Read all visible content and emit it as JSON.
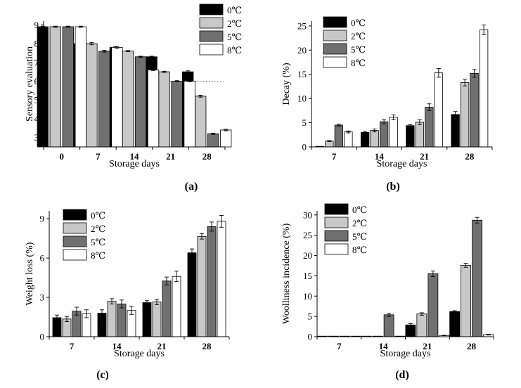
{
  "legend_labels": [
    "0℃",
    "2℃",
    "5℃",
    "8℃"
  ],
  "series_colors": [
    "#000000",
    "#c8c8c8",
    "#707070",
    "#ffffff"
  ],
  "chart_data": [
    {
      "type": "bar",
      "panel_label": "(a)",
      "xlabel": "Storage days",
      "ylabel": "Sensory evaluation",
      "categories": [
        "0",
        "7",
        "14",
        "21",
        "28"
      ],
      "ylim": [
        2.5,
        9.2
      ],
      "yticks": [
        3,
        4,
        5,
        6,
        7,
        8,
        9
      ],
      "reference_line": 6,
      "legend_position": "top-right",
      "series": [
        {
          "name": "0℃",
          "values": [
            8.9,
            8.0,
            7.8,
            7.3,
            6.5
          ],
          "errors": [
            0.03,
            0.03,
            0.03,
            0.03,
            0.05
          ]
        },
        {
          "name": "2℃",
          "values": [
            8.9,
            8.0,
            7.6,
            6.5,
            5.2
          ],
          "errors": [
            0.03,
            0.06,
            0.03,
            0.03,
            0.05
          ]
        },
        {
          "name": "5℃",
          "values": [
            8.9,
            7.6,
            7.3,
            6.0,
            3.2
          ],
          "errors": [
            0.03,
            0.05,
            0.03,
            0.03,
            0.03
          ]
        },
        {
          "name": "8℃",
          "values": [
            8.9,
            7.8,
            6.6,
            6.0,
            3.4
          ],
          "errors": [
            0.03,
            0.05,
            0.03,
            0.03,
            0.04
          ]
        }
      ]
    },
    {
      "type": "bar",
      "panel_label": "(b)",
      "xlabel": "Storage days",
      "ylabel": "Decay (%)",
      "categories": [
        "7",
        "14",
        "21",
        "28"
      ],
      "ylim": [
        0,
        26
      ],
      "yticks": [
        0,
        5,
        10,
        15,
        20,
        25
      ],
      "legend_position": "top-left",
      "series": [
        {
          "name": "0℃",
          "values": [
            0,
            3.0,
            4.4,
            6.7
          ],
          "errors": [
            0,
            0.2,
            0.2,
            0.6
          ]
        },
        {
          "name": "2℃",
          "values": [
            1.2,
            3.4,
            5.1,
            13.3
          ],
          "errors": [
            0.1,
            0.3,
            0.5,
            0.7
          ]
        },
        {
          "name": "5℃",
          "values": [
            4.5,
            5.2,
            8.2,
            15.2
          ],
          "errors": [
            0.2,
            0.4,
            0.7,
            0.8
          ]
        },
        {
          "name": "8℃",
          "values": [
            3.1,
            6.1,
            15.3,
            24.2
          ],
          "errors": [
            0.2,
            0.5,
            0.9,
            1.0
          ]
        }
      ]
    },
    {
      "type": "bar",
      "panel_label": "(c)",
      "xlabel": "Storage days",
      "ylabel": "Weight loss (%)",
      "categories": [
        "7",
        "14",
        "21",
        "28"
      ],
      "ylim": [
        0,
        9.6
      ],
      "yticks": [
        0,
        3,
        6,
        9
      ],
      "legend_position": "top-left",
      "series": [
        {
          "name": "0℃",
          "values": [
            1.45,
            1.8,
            2.6,
            6.4
          ],
          "errors": [
            0.2,
            0.25,
            0.15,
            0.3
          ]
        },
        {
          "name": "2℃",
          "values": [
            1.35,
            2.7,
            2.65,
            7.65
          ],
          "errors": [
            0.2,
            0.2,
            0.2,
            0.2
          ]
        },
        {
          "name": "5℃",
          "values": [
            1.95,
            2.5,
            4.25,
            8.4
          ],
          "errors": [
            0.3,
            0.3,
            0.3,
            0.35
          ]
        },
        {
          "name": "8℃",
          "values": [
            1.75,
            2.0,
            4.6,
            8.8
          ],
          "errors": [
            0.3,
            0.3,
            0.4,
            0.45
          ]
        }
      ]
    },
    {
      "type": "bar",
      "panel_label": "(d)",
      "xlabel": "Storage days",
      "ylabel": "Woolliness incidence (%)",
      "categories": [
        "7",
        "14",
        "21",
        "28"
      ],
      "ylim": [
        0,
        31
      ],
      "yticks": [
        0,
        5,
        10,
        15,
        20,
        25,
        30
      ],
      "legend_position": "top-left",
      "series": [
        {
          "name": "0℃",
          "values": [
            0,
            0,
            2.9,
            6.2
          ],
          "errors": [
            0,
            0,
            0.3,
            0.2
          ]
        },
        {
          "name": "2℃",
          "values": [
            0,
            0,
            5.6,
            17.6
          ],
          "errors": [
            0,
            0,
            0.3,
            0.5
          ]
        },
        {
          "name": "5℃",
          "values": [
            0,
            5.4,
            15.5,
            28.7
          ],
          "errors": [
            0,
            0.4,
            0.7,
            0.7
          ]
        },
        {
          "name": "8℃",
          "values": [
            0,
            0,
            0.3,
            0.5
          ],
          "errors": [
            0,
            0,
            0.05,
            0.1
          ]
        }
      ]
    }
  ]
}
